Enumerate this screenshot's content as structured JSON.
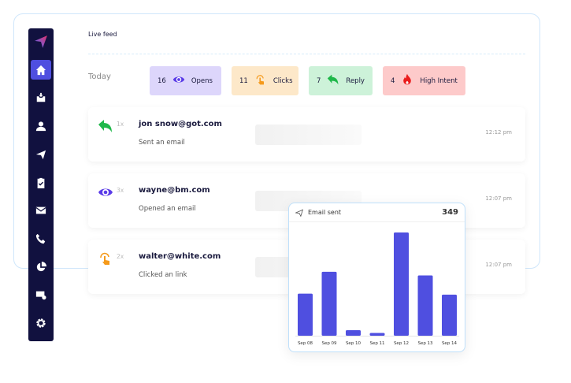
{
  "sidebar": {
    "items": [
      "logo",
      "home",
      "inbox",
      "contacts",
      "campaigns",
      "tasks",
      "email",
      "calls",
      "reports",
      "email-settings",
      "settings"
    ],
    "active": "home"
  },
  "header": {
    "title": "Live feed",
    "today": "Today"
  },
  "badges": [
    {
      "count": "16",
      "label": "Opens",
      "icon": "eye-icon",
      "bg": "#ddd6fb",
      "color": "#5a3be8"
    },
    {
      "count": "11",
      "label": "Clicks",
      "icon": "pointer-click-icon",
      "bg": "#fde8c9",
      "color": "#f59a1b"
    },
    {
      "count": "7",
      "label": "Reply",
      "icon": "reply-icon",
      "bg": "#cdf2d9",
      "color": "#1fb84a"
    },
    {
      "count": "4",
      "label": "High Intent",
      "icon": "flame-icon",
      "bg": "#fdcaca",
      "color": "#ea1c1c"
    }
  ],
  "feed": [
    {
      "icon": "reply-icon",
      "count": "1x",
      "email": "jon snow@got.com",
      "action": "Sent an email",
      "time": "12:12 pm"
    },
    {
      "icon": "eye-icon",
      "count": "3x",
      "email": "wayne@bm.com",
      "action": "Opened an email",
      "time": "12:07 pm"
    },
    {
      "icon": "pointer-click-icon",
      "count": "2x",
      "email": "walter@white.com",
      "action": "Clicked an link",
      "time": "12:07 pm"
    }
  ],
  "chart_data": {
    "type": "bar",
    "title": "Email sent",
    "total": "349",
    "categories": [
      "Sep 08",
      "Sep 09",
      "Sep 10",
      "Sep 11",
      "Sep 12",
      "Sep 13",
      "Sep 14"
    ],
    "values": [
      46,
      70,
      6,
      3,
      113,
      66,
      45
    ],
    "color": "#4f4fe0",
    "grid": false
  }
}
